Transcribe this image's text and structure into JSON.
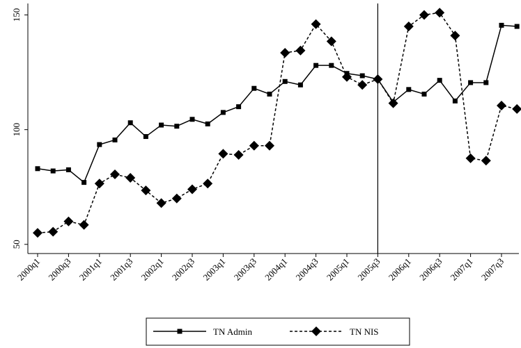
{
  "chart_data": {
    "type": "line",
    "categories": [
      "2000q1",
      null,
      "2000q3",
      null,
      "2001q1",
      null,
      "2001q3",
      null,
      "2002q1",
      null,
      "2002q3",
      null,
      "2003q1",
      null,
      "2003q3",
      null,
      "2004q1",
      null,
      "2004q3",
      null,
      "2005q1",
      null,
      "2005q3",
      null,
      "2006q1",
      null,
      "2006q3",
      null,
      "2007q1",
      null,
      "2007q3",
      null
    ],
    "series": [
      {
        "name": "TN Admin",
        "color": "#000000",
        "dash": "solid",
        "marker": "square",
        "values": [
          83,
          82,
          82.5,
          77,
          93.5,
          95.5,
          103,
          97,
          102,
          101.5,
          104.5,
          102.5,
          107.5,
          110,
          118,
          115.5,
          121,
          119.5,
          128,
          128,
          124.5,
          123.5,
          122,
          112,
          117.5,
          115.5,
          121.5,
          112.5,
          120.5,
          120.5,
          145.5,
          145
        ]
      },
      {
        "name": "TN NIS",
        "color": "#000000",
        "dash": "dashed",
        "marker": "diamond",
        "values": [
          55,
          55.5,
          60,
          58.5,
          76.5,
          80.5,
          79,
          73.5,
          68,
          70,
          74,
          76.5,
          89.5,
          89,
          93,
          93,
          133.5,
          134.5,
          146,
          138.5,
          123,
          119.5,
          122,
          111.5,
          145,
          150,
          151,
          141,
          87.5,
          86.5,
          110.5,
          109
        ]
      }
    ],
    "ylim": [
      46,
      155
    ],
    "yticks": [
      50,
      100,
      150
    ],
    "vline": "2005q3",
    "grid": false,
    "legend": "bottom"
  }
}
